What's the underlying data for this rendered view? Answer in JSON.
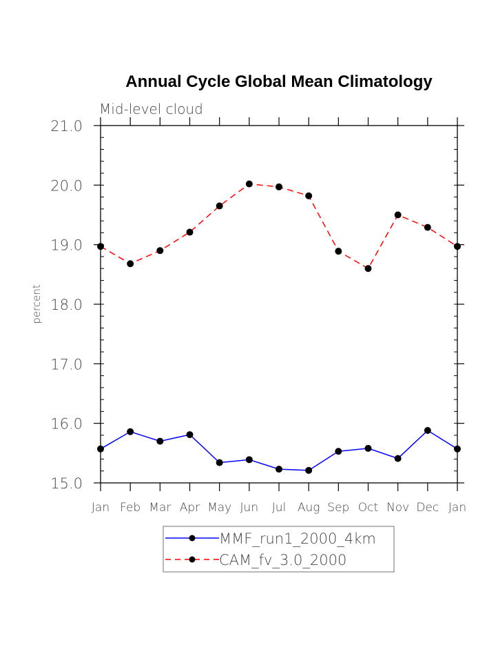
{
  "chart_data": {
    "type": "line",
    "title": "Annual Cycle Global Mean Climatology",
    "subtitle": "Mid-level cloud",
    "xlabel": "",
    "ylabel": "percent",
    "ylim": [
      15.0,
      21.0
    ],
    "yticks": [
      "15.0",
      "16.0",
      "17.0",
      "18.0",
      "19.0",
      "20.0",
      "21.0"
    ],
    "yminor_step": 0.2,
    "categories": [
      "Jan",
      "Feb",
      "Mar",
      "Apr",
      "May",
      "Jun",
      "Jul",
      "Aug",
      "Sep",
      "Oct",
      "Nov",
      "Dec",
      "Jan"
    ],
    "grid": false,
    "legend_position": "bottom-center",
    "series": [
      {
        "name": "MMF_run1_2000_4km",
        "color": "#0000ff",
        "dash": "solid",
        "values": [
          15.57,
          15.86,
          15.7,
          15.81,
          15.34,
          15.39,
          15.23,
          15.21,
          15.53,
          15.58,
          15.41,
          15.88,
          15.57
        ]
      },
      {
        "name": "CAM_fv_3.0_2000",
        "color": "#ff0000",
        "dash": "dashed",
        "values": [
          18.97,
          18.68,
          18.9,
          19.21,
          19.65,
          20.02,
          19.97,
          19.82,
          18.89,
          18.6,
          19.5,
          19.29,
          18.97
        ]
      }
    ]
  }
}
